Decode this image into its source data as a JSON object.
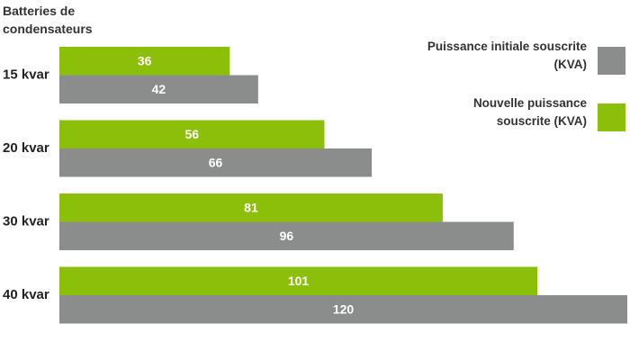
{
  "chart_data": {
    "type": "bar",
    "orientation": "horizontal",
    "title": "Batteries de condensateurs",
    "categories": [
      "15 kvar",
      "20 kvar",
      "30 kvar",
      "40 kvar"
    ],
    "series": [
      {
        "name": "Puissance initiale souscrite (KVA)",
        "color": "#8a8d8c",
        "values": [
          42,
          66,
          96,
          120
        ]
      },
      {
        "name": "Nouvelle puissance souscrite (KVA)",
        "color": "#8cbf0a",
        "values": [
          36,
          56,
          81,
          101
        ]
      }
    ],
    "legend": "top-right"
  }
}
